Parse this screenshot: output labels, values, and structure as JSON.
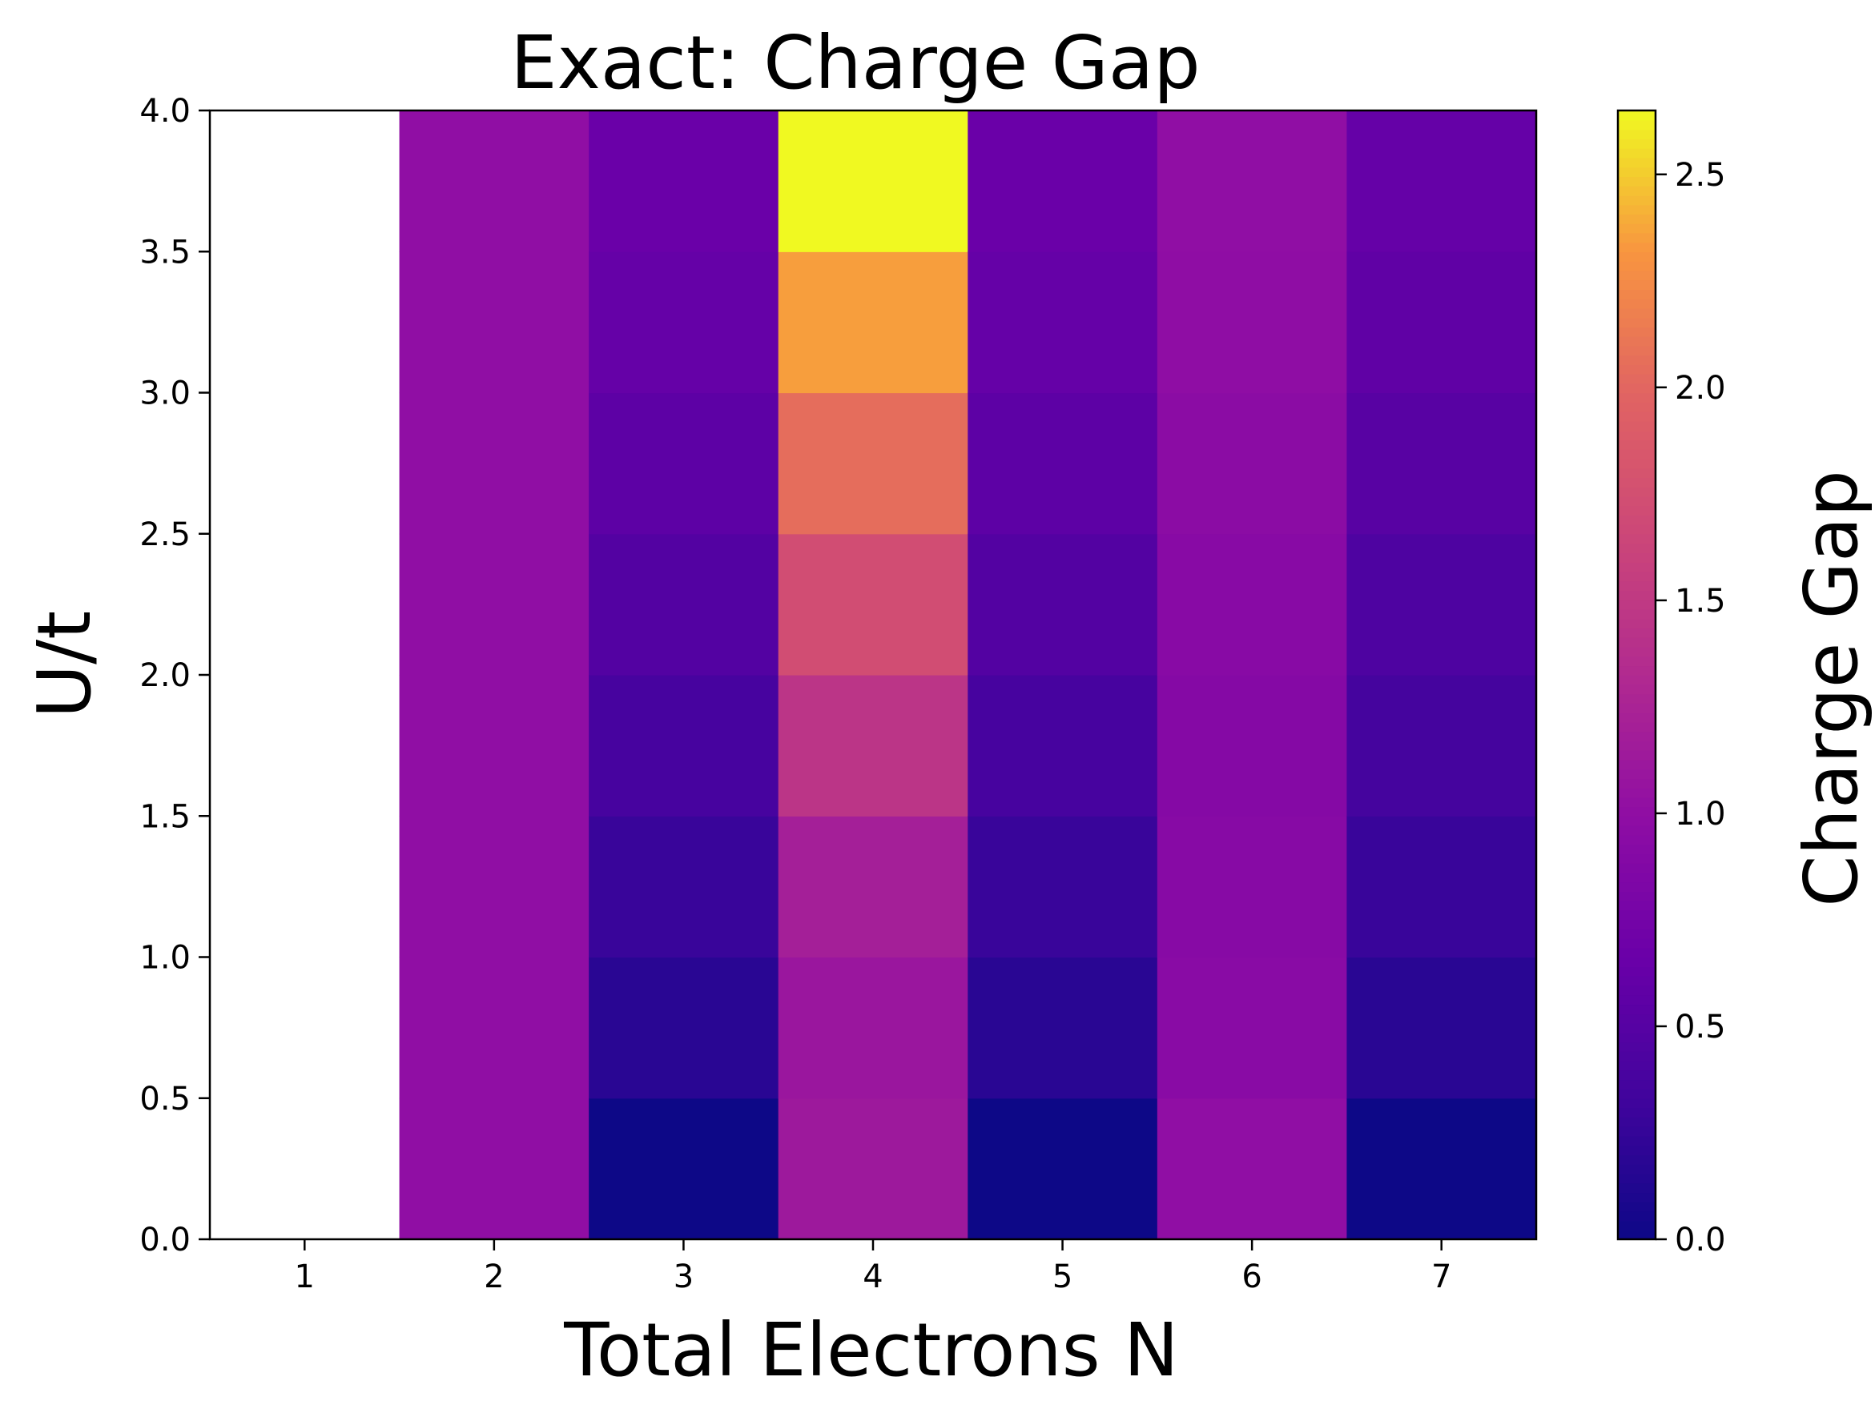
{
  "chart_data": {
    "type": "heatmap",
    "title": "Exact: Charge Gap",
    "xlabel": "Total Electrons N",
    "ylabel": "U/t",
    "x": [
      1,
      2,
      3,
      4,
      5,
      6,
      7
    ],
    "x_tick_labels": [
      "1",
      "2",
      "3",
      "4",
      "5",
      "6",
      "7"
    ],
    "y_bins": [
      [
        0.0,
        0.5
      ],
      [
        0.5,
        1.0
      ],
      [
        1.0,
        1.5
      ],
      [
        1.5,
        2.0
      ],
      [
        2.0,
        2.5
      ],
      [
        2.5,
        3.0
      ],
      [
        3.0,
        3.5
      ],
      [
        3.5,
        4.0
      ]
    ],
    "y_tick_labels": [
      "0.0",
      "0.5",
      "1.0",
      "1.5",
      "2.0",
      "2.5",
      "3.0",
      "3.5",
      "4.0"
    ],
    "ylim": [
      0.0,
      4.0
    ],
    "values": [
      [
        null,
        null,
        null,
        null,
        null,
        null,
        null,
        null
      ],
      [
        1.0,
        1.0,
        1.0,
        1.0,
        1.0,
        1.0,
        1.0,
        1.0
      ],
      [
        0.0,
        0.18,
        0.28,
        0.38,
        0.48,
        0.56,
        0.62,
        0.66
      ],
      [
        1.13,
        1.1,
        1.2,
        1.45,
        1.73,
        2.05,
        2.35,
        2.65
      ],
      [
        0.0,
        0.18,
        0.28,
        0.38,
        0.48,
        0.56,
        0.62,
        0.66
      ],
      [
        1.0,
        0.94,
        0.92,
        0.9,
        0.93,
        0.96,
        0.99,
        1.0
      ],
      [
        0.0,
        0.18,
        0.28,
        0.36,
        0.44,
        0.52,
        0.58,
        0.62
      ]
    ],
    "missing_color": "#ffffff",
    "colorbar": {
      "label": "Charge Gap",
      "min": 0.0,
      "max": 2.65,
      "ticks": [
        0.0,
        0.5,
        1.0,
        1.5,
        2.0,
        2.5
      ],
      "tick_labels": [
        "0.0",
        "0.5",
        "1.0",
        "1.5",
        "2.0",
        "2.5"
      ],
      "colormap": "plasma"
    },
    "grid": false,
    "legend": "none"
  }
}
